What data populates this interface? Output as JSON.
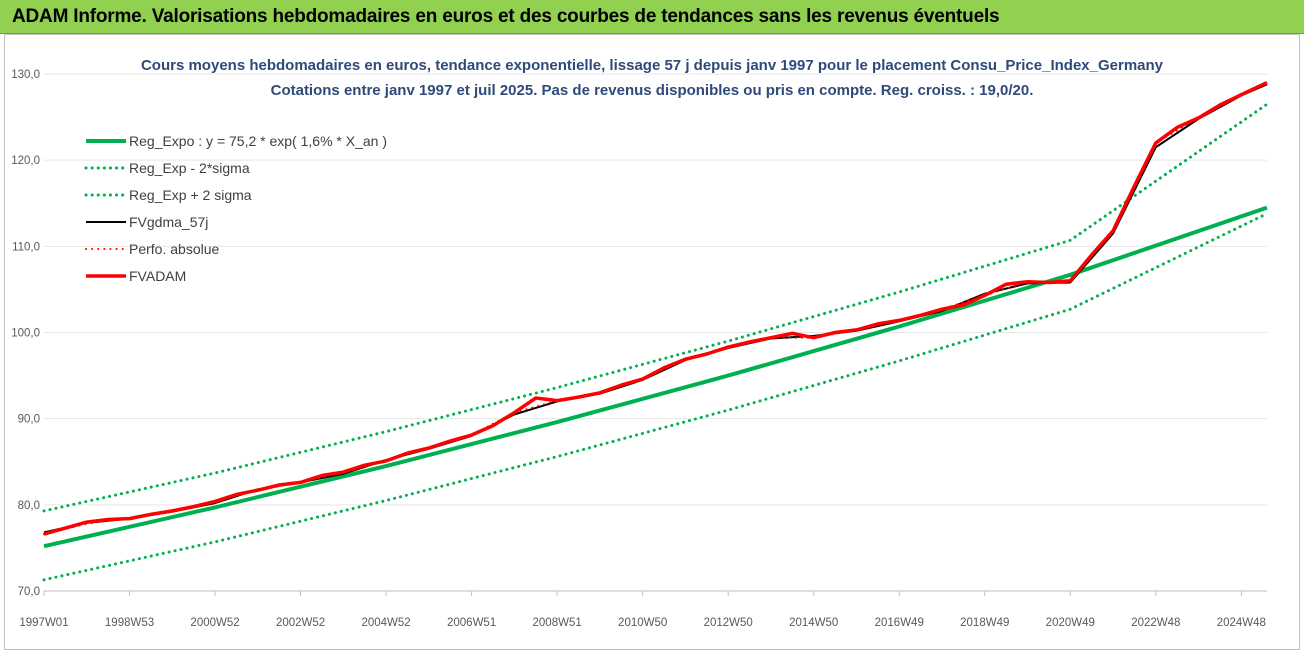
{
  "header": {
    "title": "ADAM Informe. Valorisations hebdomadaires en euros et des courbes de tendances sans les revenus éventuels"
  },
  "chart_data": {
    "type": "line",
    "title": "Cours moyens hebdomadaires en euros, tendance exponentielle, lissage 57 j depuis janv 1997  pour le placement Consu_Price_Index_Germany",
    "subtitle": "Cotations entre janv 1997 et juil 2025. Pas de revenus disponibles ou pris en compte. Reg. croiss. : 19,0/20.",
    "xlabel": "",
    "ylabel": "",
    "ylim": [
      70,
      130
    ],
    "xlim": [
      1997.0,
      2025.6
    ],
    "grid": true,
    "legend_position": "top-left",
    "y_ticks": [
      "70,0",
      "80,0",
      "90,0",
      "100,0",
      "110,0",
      "120,0",
      "130,0"
    ],
    "x_ticks": [
      {
        "label": "1997W01",
        "x": 1997.0
      },
      {
        "label": "1998W53",
        "x": 1999.0
      },
      {
        "label": "2000W52",
        "x": 2001.0
      },
      {
        "label": "2002W52",
        "x": 2003.0
      },
      {
        "label": "2004W52",
        "x": 2005.0
      },
      {
        "label": "2006W51",
        "x": 2007.0
      },
      {
        "label": "2008W51",
        "x": 2009.0
      },
      {
        "label": "2010W50",
        "x": 2011.0
      },
      {
        "label": "2012W50",
        "x": 2013.0
      },
      {
        "label": "2014W50",
        "x": 2015.0
      },
      {
        "label": "2016W49",
        "x": 2017.0
      },
      {
        "label": "2018W49",
        "x": 2019.0
      },
      {
        "label": "2020W49",
        "x": 2021.0
      },
      {
        "label": "2022W48",
        "x": 2023.0
      },
      {
        "label": "2024W48",
        "x": 2025.0
      }
    ],
    "series": [
      {
        "name": "Reg_Expo : y = 75,2 * exp( 1,6% *  X_an )",
        "color": "#00b050",
        "style": "solid",
        "x": [
          1997.0,
          2001.0,
          2005.0,
          2009.0,
          2013.0,
          2017.0,
          2021.0,
          2025.6
        ],
        "values": [
          75.2,
          79.7,
          84.5,
          89.6,
          95.0,
          100.7,
          106.7,
          114.5
        ]
      },
      {
        "name": "Reg_Exp - 2*sigma",
        "color": "#00b050",
        "style": "dotted",
        "x": [
          1997.0,
          2001.0,
          2005.0,
          2009.0,
          2013.0,
          2017.0,
          2021.0,
          2025.6
        ],
        "values": [
          71.3,
          75.7,
          80.5,
          85.6,
          91.0,
          96.7,
          102.7,
          113.8
        ]
      },
      {
        "name": "Reg_Exp + 2 sigma",
        "color": "#00b050",
        "style": "dotted",
        "x": [
          1997.0,
          2001.0,
          2005.0,
          2009.0,
          2013.0,
          2017.0,
          2021.0,
          2025.6
        ],
        "values": [
          79.3,
          83.7,
          88.5,
          93.6,
          99.0,
          104.7,
          110.7,
          126.5
        ]
      },
      {
        "name": "FVgdma_57j",
        "color": "#000000",
        "style": "solid",
        "x": [
          1997.0,
          1998.0,
          1999.0,
          2000.0,
          2001.0,
          2002.0,
          2003.0,
          2004.0,
          2005.0,
          2006.0,
          2007.0,
          2008.0,
          2009.0,
          2010.0,
          2011.0,
          2012.0,
          2013.0,
          2014.0,
          2015.0,
          2016.0,
          2017.0,
          2018.0,
          2019.0,
          2020.0,
          2021.0,
          2022.0,
          2023.0,
          2024.0,
          2025.0,
          2025.6
        ],
        "values": [
          76.8,
          77.9,
          78.4,
          79.2,
          80.2,
          81.8,
          82.6,
          83.6,
          85.2,
          86.5,
          88.0,
          90.5,
          92.0,
          92.9,
          94.5,
          96.8,
          98.2,
          99.3,
          99.6,
          100.2,
          101.3,
          102.5,
          104.5,
          105.7,
          105.8,
          111.5,
          121.5,
          124.8,
          127.5,
          128.8
        ]
      },
      {
        "name": "Perfo. absolue",
        "color": "#ff0000",
        "style": "dotted",
        "x": [
          1997.0,
          1998.0,
          1999.0,
          2000.0,
          2001.0,
          2002.0,
          2003.0,
          2004.0,
          2005.0,
          2006.0,
          2007.0,
          2008.0,
          2009.0,
          2010.0,
          2011.0,
          2012.0,
          2013.0,
          2014.0,
          2015.0,
          2016.0,
          2017.0,
          2018.0,
          2019.0,
          2020.0,
          2021.0,
          2022.0,
          2023.0,
          2024.0,
          2025.0,
          2025.6
        ],
        "values": [
          76.6,
          77.8,
          78.5,
          79.3,
          80.4,
          81.7,
          82.6,
          83.8,
          85.1,
          86.6,
          88.1,
          90.7,
          92.1,
          93.0,
          94.6,
          96.9,
          98.3,
          99.4,
          99.4,
          100.3,
          101.4,
          102.7,
          104.3,
          105.9,
          106.0,
          111.8,
          122.0,
          124.9,
          127.6,
          129.0
        ]
      },
      {
        "name": "FVADAM",
        "color": "#ff0000",
        "style": "solid",
        "x": [
          1997.0,
          1997.5,
          1998.0,
          1998.5,
          1999.0,
          1999.5,
          2000.0,
          2000.5,
          2001.0,
          2001.5,
          2002.0,
          2002.5,
          2003.0,
          2003.5,
          2004.0,
          2004.5,
          2005.0,
          2005.5,
          2006.0,
          2006.5,
          2007.0,
          2007.5,
          2008.0,
          2008.5,
          2009.0,
          2009.5,
          2010.0,
          2010.5,
          2011.0,
          2011.5,
          2012.0,
          2012.5,
          2013.0,
          2013.5,
          2014.0,
          2014.5,
          2015.0,
          2015.5,
          2016.0,
          2016.5,
          2017.0,
          2017.5,
          2018.0,
          2018.5,
          2019.0,
          2019.5,
          2020.0,
          2020.5,
          2021.0,
          2021.5,
          2022.0,
          2022.5,
          2023.0,
          2023.5,
          2024.0,
          2024.5,
          2025.0,
          2025.6
        ],
        "values": [
          76.6,
          77.3,
          78.0,
          78.3,
          78.4,
          78.9,
          79.3,
          79.8,
          80.4,
          81.2,
          81.7,
          82.3,
          82.6,
          83.4,
          83.8,
          84.6,
          85.1,
          86.0,
          86.6,
          87.4,
          88.1,
          89.2,
          90.7,
          92.4,
          92.1,
          92.5,
          93.0,
          93.9,
          94.6,
          95.9,
          96.9,
          97.5,
          98.3,
          98.9,
          99.4,
          99.9,
          99.4,
          100.0,
          100.3,
          101.0,
          101.4,
          102.0,
          102.7,
          103.2,
          104.3,
          105.6,
          105.9,
          105.8,
          106.0,
          109.0,
          111.8,
          117.0,
          122.0,
          123.8,
          124.9,
          126.4,
          127.6,
          129.0
        ]
      }
    ]
  }
}
